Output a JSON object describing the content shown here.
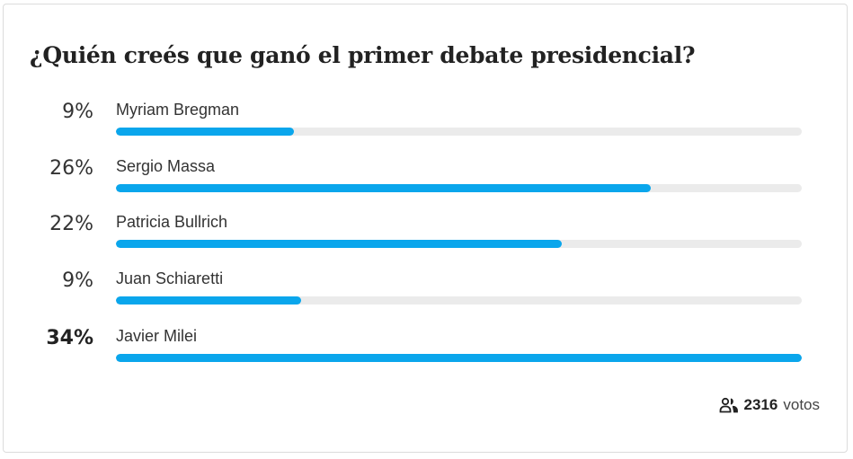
{
  "poll": {
    "title": "¿Quién creés que ganó el primer debate presidencial?",
    "options": [
      {
        "percent_label": "9%",
        "name": "Myriam Bregman",
        "fill_percent": 26,
        "winner": false
      },
      {
        "percent_label": "26%",
        "name": "Sergio Massa",
        "fill_percent": 78,
        "winner": false
      },
      {
        "percent_label": "22%",
        "name": "Patricia Bullrich",
        "fill_percent": 65,
        "winner": false
      },
      {
        "percent_label": "9%",
        "name": "Juan Schiaretti",
        "fill_percent": 27,
        "winner": false
      },
      {
        "percent_label": "34%",
        "name": "Javier Milei",
        "fill_percent": 100,
        "winner": true
      }
    ],
    "footer": {
      "icon": "users-icon",
      "vote_count": "2316",
      "vote_label": "votos"
    },
    "colors": {
      "bar_fill": "#0aa6ec",
      "bar_track": "#ebebeb"
    }
  },
  "chart_data": {
    "type": "bar",
    "title": "¿Quién creés que ganó el primer debate presidencial?",
    "orientation": "horizontal",
    "categories": [
      "Myriam Bregman",
      "Sergio Massa",
      "Patricia Bullrich",
      "Juan Schiaretti",
      "Javier Milei"
    ],
    "values": [
      9,
      26,
      22,
      9,
      34
    ],
    "unit": "%",
    "total_votes": 2316,
    "xlabel": "",
    "ylabel": "",
    "grid": false,
    "legend": null
  }
}
